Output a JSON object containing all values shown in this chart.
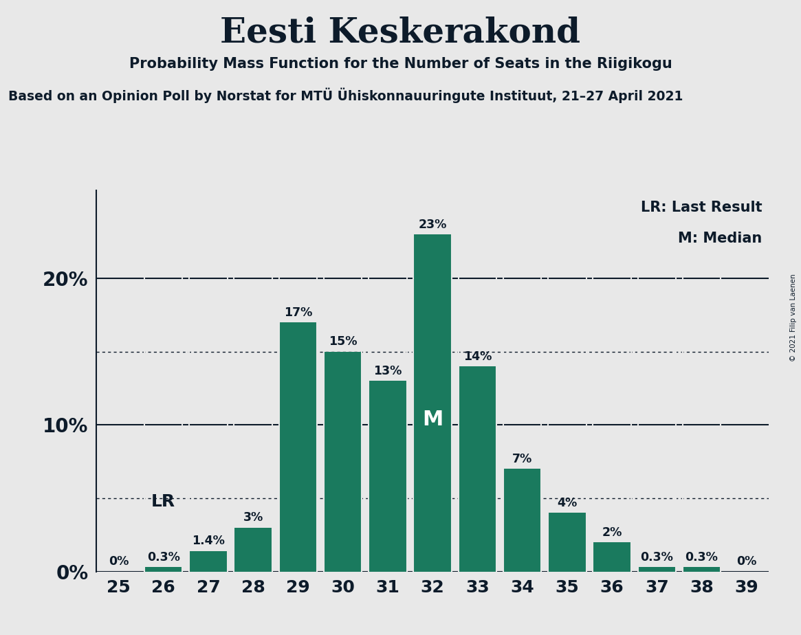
{
  "title": "Eesti Keskerakond",
  "subtitle": "Probability Mass Function for the Number of Seats in the Riigikogu",
  "source_line": "Based on an Opinion Poll by Norstat for MTÜ Ühiskonnauuringute Instituut, 21–27 April 2021",
  "copyright": "© 2021 Filip van Laenen",
  "seats": [
    25,
    26,
    27,
    28,
    29,
    30,
    31,
    32,
    33,
    34,
    35,
    36,
    37,
    38,
    39
  ],
  "probabilities": [
    0.0,
    0.3,
    1.4,
    3.0,
    17.0,
    15.0,
    13.0,
    23.0,
    14.0,
    7.0,
    4.0,
    2.0,
    0.3,
    0.3,
    0.0
  ],
  "bar_color": "#1a7a5e",
  "background_color": "#e8e8e8",
  "text_color": "#0d1b2a",
  "median_seat": 32,
  "last_result_seat": 26,
  "legend_lr": "LR: Last Result",
  "legend_m": "M: Median",
  "ytick_labels": [
    "0%",
    "10%",
    "20%"
  ],
  "ytick_values": [
    0,
    10,
    20
  ],
  "dotted_line_values": [
    5,
    15
  ],
  "ylim": [
    0,
    26
  ],
  "bar_labels": [
    "0%",
    "0.3%",
    "1.4%",
    "3%",
    "17%",
    "15%",
    "13%",
    "23%",
    "14%",
    "7%",
    "4%",
    "2%",
    "0.3%",
    "0.3%",
    "0%"
  ]
}
